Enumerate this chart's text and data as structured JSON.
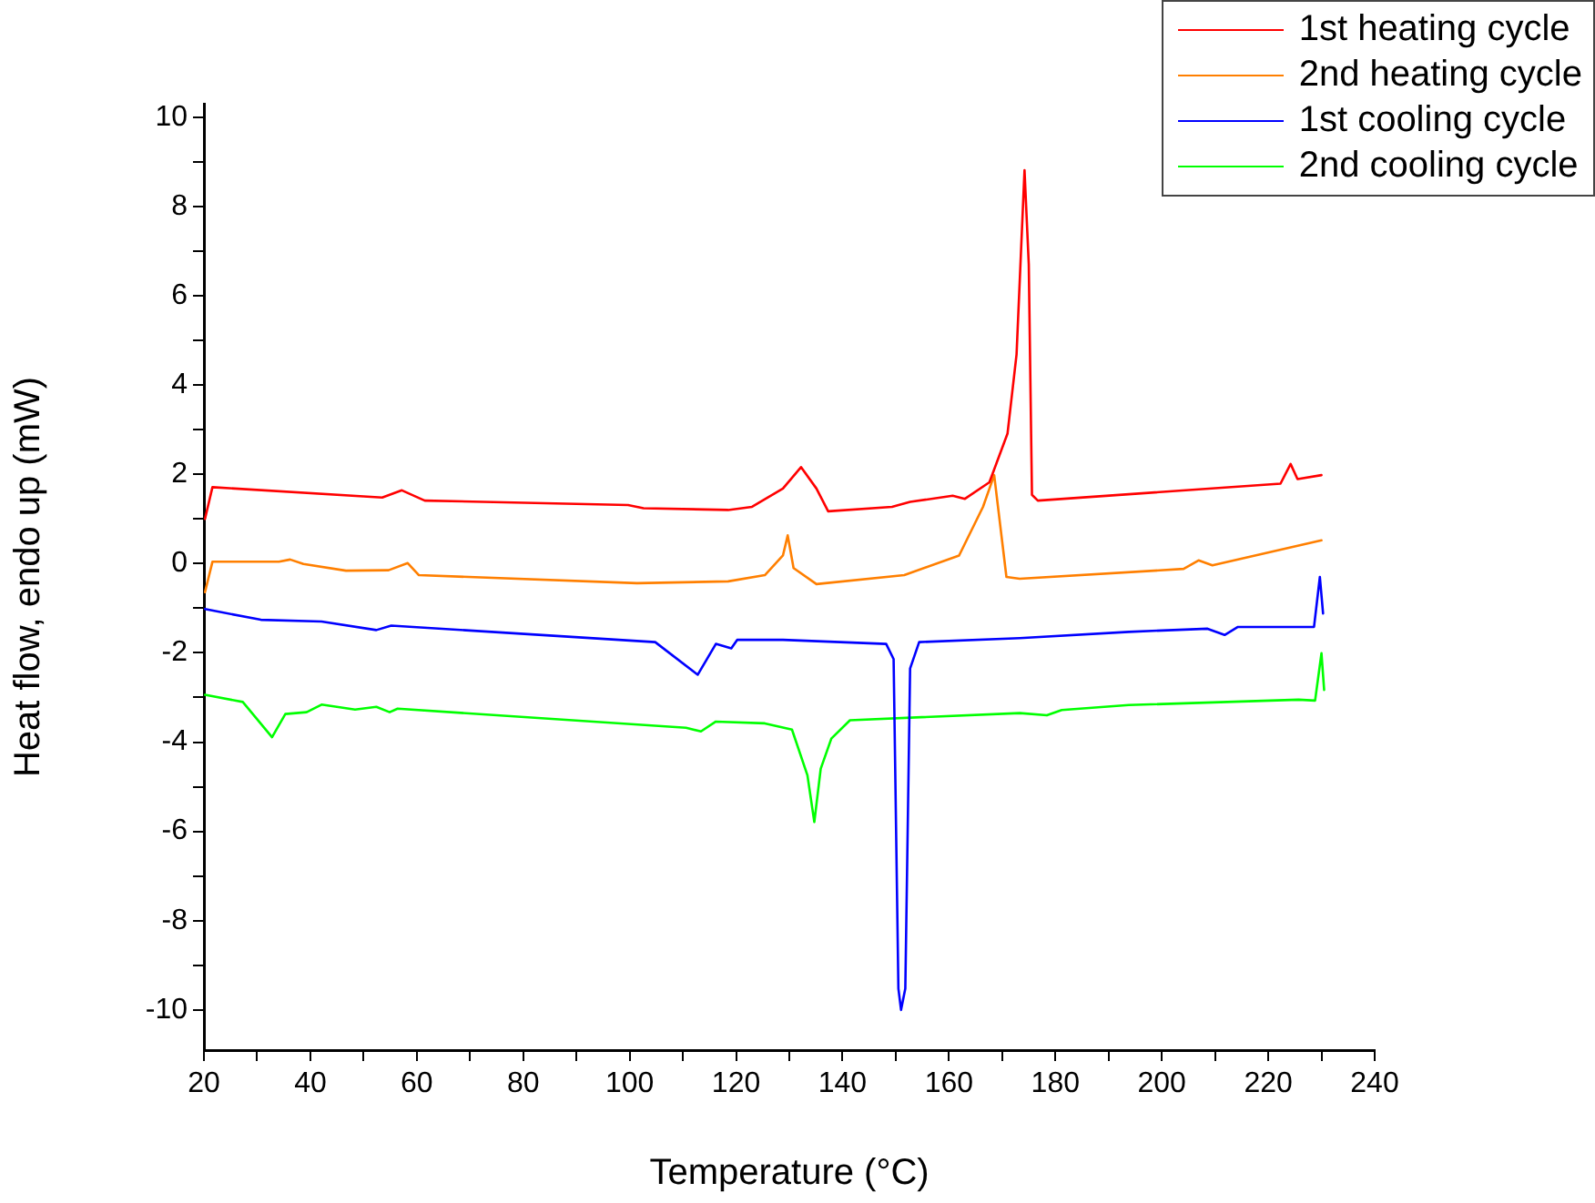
{
  "chart_data": {
    "type": "line",
    "xlabel": "Temperature (°C)",
    "ylabel": "Heat flow, endo up (mW)",
    "xlim": [
      20,
      240
    ],
    "ylim": [
      -10.9,
      10.3
    ],
    "xticks": [
      20,
      {
        "value": 30,
        "label": null
      },
      40,
      {
        "value": 50,
        "label": null
      },
      60,
      {
        "value": 70,
        "label": null
      },
      80,
      {
        "value": 90,
        "label": null
      },
      100,
      {
        "value": 110,
        "label": null
      },
      120,
      {
        "value": 130,
        "label": null
      },
      140,
      {
        "value": 150,
        "label": null
      },
      160,
      {
        "value": 170,
        "label": null
      },
      180,
      {
        "value": 190,
        "label": null
      },
      200,
      {
        "value": 210,
        "label": null
      },
      220,
      {
        "value": 230,
        "label": null
      },
      240
    ],
    "yticks": [
      -10,
      {
        "value": -9,
        "label": null
      },
      -8,
      {
        "value": -7,
        "label": null
      },
      -6,
      {
        "value": -5,
        "label": null
      },
      -4,
      {
        "value": -3,
        "label": null
      },
      -2,
      {
        "value": -1,
        "label": null
      },
      0,
      {
        "value": 1,
        "label": null
      },
      2,
      {
        "value": 3,
        "label": null
      },
      4,
      {
        "value": 5,
        "label": null
      },
      6,
      {
        "value": 7,
        "label": null
      },
      8,
      {
        "value": 9,
        "label": null
      },
      10
    ],
    "grid": false,
    "legend": "top right",
    "marker": "none",
    "line_style": "solid",
    "series": [
      {
        "name": "1st heating cycle",
        "color": "#ff0000",
        "x": [
          20.2,
          21.6,
          53.5,
          57.2,
          61.5,
          99.7,
          102.6,
          118.5,
          123,
          128.8,
          132.2,
          135.1,
          137.3,
          149.3,
          152.7,
          160.7,
          163,
          167.6,
          171,
          172.7,
          174.2,
          175,
          175.6,
          176.7,
          222.3,
          224.2,
          225.5,
          230
        ],
        "values": [
          1.0,
          1.71,
          1.48,
          1.64,
          1.41,
          1.31,
          1.24,
          1.2,
          1.27,
          1.68,
          2.16,
          1.68,
          1.17,
          1.27,
          1.38,
          1.52,
          1.45,
          1.82,
          2.91,
          4.68,
          8.81,
          6.7,
          1.54,
          1.41,
          1.79,
          2.23,
          1.89,
          1.98
        ]
      },
      {
        "name": "2nd heating cycle",
        "color": "#ff7f00",
        "x": [
          20.2,
          21.6,
          34.1,
          36.2,
          38.7,
          46.7,
          54.7,
          58.3,
          60.4,
          101.4,
          118.5,
          125.4,
          128.8,
          129.7,
          130.8,
          135.1,
          151.6,
          161.9,
          166.4,
          168.5,
          170.8,
          173.3,
          204.1,
          206.9,
          209.5,
          230
        ],
        "values": [
          -0.64,
          0.04,
          0.04,
          0.09,
          -0.01,
          -0.16,
          -0.15,
          0.01,
          -0.26,
          -0.44,
          -0.4,
          -0.26,
          0.18,
          0.63,
          -0.1,
          -0.46,
          -0.26,
          0.18,
          1.27,
          1.98,
          -0.3,
          -0.34,
          -0.12,
          0.07,
          -0.04,
          0.52
        ]
      },
      {
        "name": "1st cooling cycle",
        "color": "#0000ff",
        "x": [
          20.2,
          30.7,
          42.1,
          52.4,
          55.2,
          104.8,
          112.8,
          116.2,
          119.1,
          120.2,
          128.8,
          148.2,
          149.6,
          150.5,
          151,
          151.8,
          152.7,
          154.4,
          173.3,
          193.8,
          208.6,
          211.8,
          214.3,
          228.6,
          229.7,
          230.3
        ],
        "values": [
          -1.02,
          -1.26,
          -1.3,
          -1.49,
          -1.39,
          -1.76,
          -2.49,
          -1.8,
          -1.9,
          -1.71,
          -1.71,
          -1.8,
          -2.14,
          -9.52,
          -10.0,
          -9.52,
          -2.35,
          -1.76,
          -1.67,
          -1.53,
          -1.46,
          -1.6,
          -1.42,
          -1.42,
          -0.3,
          -1.12
        ]
      },
      {
        "name": "2nd cooling cycle",
        "color": "#00ff00",
        "x": [
          20.2,
          27.3,
          32.8,
          35.3,
          39.3,
          42.1,
          48.4,
          52.4,
          54.9,
          56.4,
          110.6,
          113.4,
          116.2,
          125.4,
          130.5,
          133.4,
          134.7,
          135.9,
          137.9,
          141.4,
          173.3,
          178.4,
          181.2,
          193.8,
          225.7,
          228.8,
          230,
          230.5
        ],
        "values": [
          -2.94,
          -3.1,
          -3.89,
          -3.37,
          -3.33,
          -3.16,
          -3.27,
          -3.21,
          -3.33,
          -3.25,
          -3.68,
          -3.76,
          -3.54,
          -3.58,
          -3.72,
          -4.74,
          -5.79,
          -4.6,
          -3.92,
          -3.51,
          -3.35,
          -3.4,
          -3.28,
          -3.17,
          -3.05,
          -3.07,
          -2.01,
          -2.83
        ]
      }
    ]
  }
}
